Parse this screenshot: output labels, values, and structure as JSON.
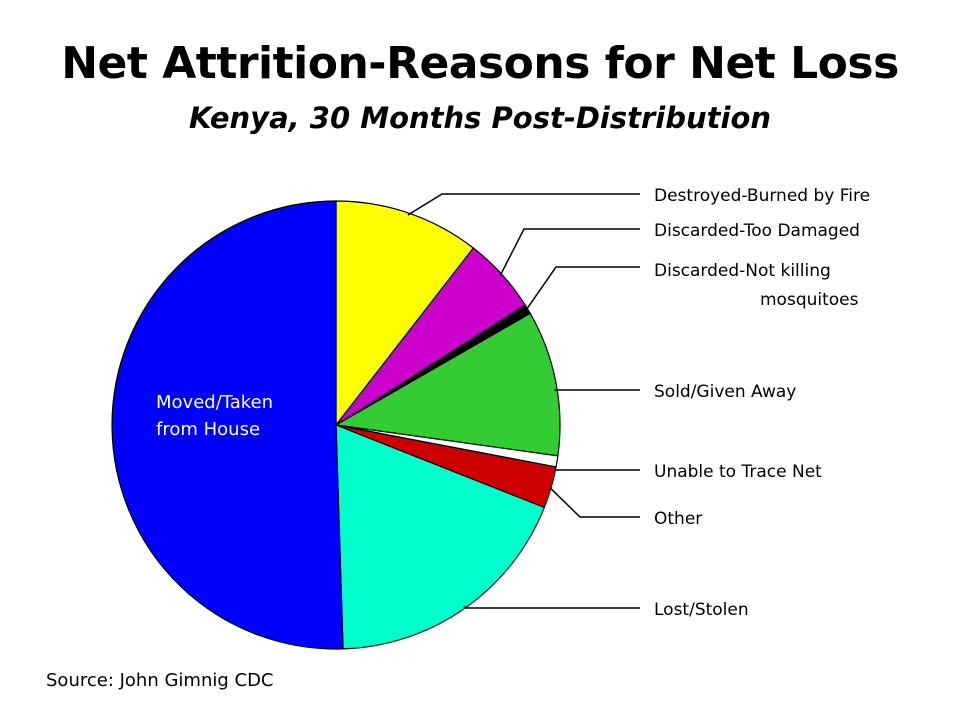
{
  "chart_data": {
    "type": "pie",
    "title": "Net Attrition-Reasons for Net Loss",
    "subtitle": "Kenya, 30 Months Post-Distribution",
    "slices": [
      {
        "label": "Destroyed-Burned by Fire",
        "value": 10.5,
        "color": "#ffff00"
      },
      {
        "label": "Discarded-Too Damaged",
        "value": 5.5,
        "color": "#cc00cc"
      },
      {
        "label": "Discarded-Not killing mosquitoes",
        "label_lines": [
          "Discarded-Not killing",
          "mosquitoes"
        ],
        "value": 0.7,
        "color": "#000000"
      },
      {
        "label": "Sold/Given Away",
        "value": 10.5,
        "color": "#33cc33"
      },
      {
        "label": "Unable to Trace Net",
        "value": 0.8,
        "color": "#ffffff"
      },
      {
        "label": "Other",
        "value": 3.0,
        "color": "#cc0000"
      },
      {
        "label": "Lost/Stolen",
        "value": 18.5,
        "color": "#00ffcc"
      },
      {
        "label": "Moved/Taken from House",
        "label_lines": [
          "Moved/Taken",
          "from House"
        ],
        "value": 50.5,
        "color": "#0000ff"
      }
    ],
    "source": "Source: John Gimnig CDC"
  }
}
